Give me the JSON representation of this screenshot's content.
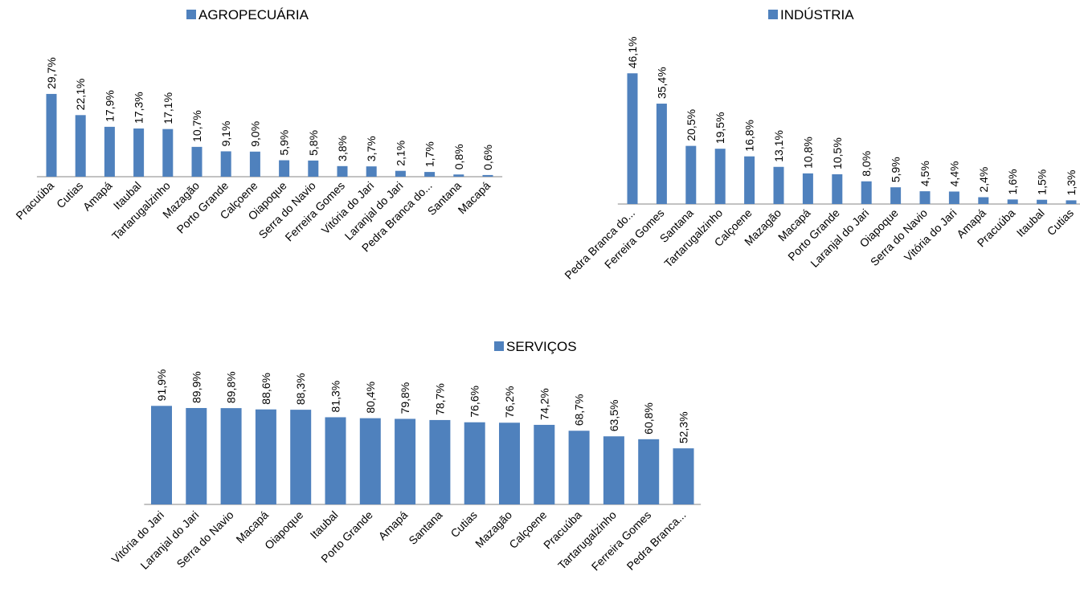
{
  "chart_data": [
    {
      "type": "bar",
      "legend": "AGROPECUÁRIA",
      "legend_position": "top",
      "grid": false,
      "color": "#4F81BD",
      "categories": [
        "Pracuúba",
        "Cutias",
        "Amapá",
        "Itaubal",
        "Tartarugalzinho",
        "Mazagão",
        "Porto Grande",
        "Calçoene",
        "Oiapoque",
        "Serra do Navio",
        "Ferreira Gomes",
        "Vitória do Jari",
        "Laranjal do Jari",
        "Pedra Branca do...",
        "Santana",
        "Macapá"
      ],
      "values": [
        29.7,
        22.1,
        17.9,
        17.3,
        17.1,
        10.7,
        9.1,
        9.0,
        5.9,
        5.8,
        3.8,
        3.7,
        2.1,
        1.7,
        0.8,
        0.6
      ],
      "data_labels": [
        "29,7%",
        "22,1%",
        "17,9%",
        "17,3%",
        "17,1%",
        "10,7%",
        "9,1%",
        "9,0%",
        "5,9%",
        "5,8%",
        "3,8%",
        "3,7%",
        "2,1%",
        "1,7%",
        "0,8%",
        "0,6%"
      ]
    },
    {
      "type": "bar",
      "legend": "INDÚSTRIA",
      "legend_position": "top",
      "grid": false,
      "color": "#4F81BD",
      "categories": [
        "Pedra Branca do...",
        "Ferreira Gomes",
        "Santana",
        "Tartarugalzinho",
        "Calçoene",
        "Mazagão",
        "Macapá",
        "Porto Grande",
        "Laranjal do Jari",
        "Oiapoque",
        "Serra do Navio",
        "Vitória do Jari",
        "Amapá",
        "Pracuúba",
        "Itaubal",
        "Cutias"
      ],
      "values": [
        46.1,
        35.4,
        20.5,
        19.5,
        16.8,
        13.1,
        10.8,
        10.5,
        8.0,
        5.9,
        4.5,
        4.4,
        2.4,
        1.6,
        1.5,
        1.3
      ],
      "data_labels": [
        "46,1%",
        "35,4%",
        "20,5%",
        "19,5%",
        "16,8%",
        "13,1%",
        "10,8%",
        "10,5%",
        "8,0%",
        "5,9%",
        "4,5%",
        "4,4%",
        "2,4%",
        "1,6%",
        "1,5%",
        "1,3%"
      ]
    },
    {
      "type": "bar",
      "legend": "SERVIÇOS",
      "legend_position": "top",
      "grid": false,
      "color": "#4F81BD",
      "categories": [
        "Vitória do Jari",
        "Laranjal do Jari",
        "Serra do Navio",
        "Macapá",
        "Oiapoque",
        "Itaubal",
        "Porto Grande",
        "Amapá",
        "Santana",
        "Cutias",
        "Mazagão",
        "Calçoene",
        "Pracuúba",
        "Tartarugalzinho",
        "Ferreira Gomes",
        "Pedra Branca..."
      ],
      "values": [
        91.9,
        89.9,
        89.8,
        88.6,
        88.3,
        81.3,
        80.4,
        79.8,
        78.7,
        76.6,
        76.2,
        74.2,
        68.7,
        63.5,
        60.8,
        52.3
      ],
      "data_labels": [
        "91,9%",
        "89,9%",
        "89,8%",
        "88,6%",
        "88,3%",
        "81,3%",
        "80,4%",
        "79,8%",
        "78,7%",
        "76,6%",
        "76,2%",
        "74,2%",
        "68,7%",
        "63,5%",
        "60,8%",
        "52,3%"
      ]
    }
  ]
}
